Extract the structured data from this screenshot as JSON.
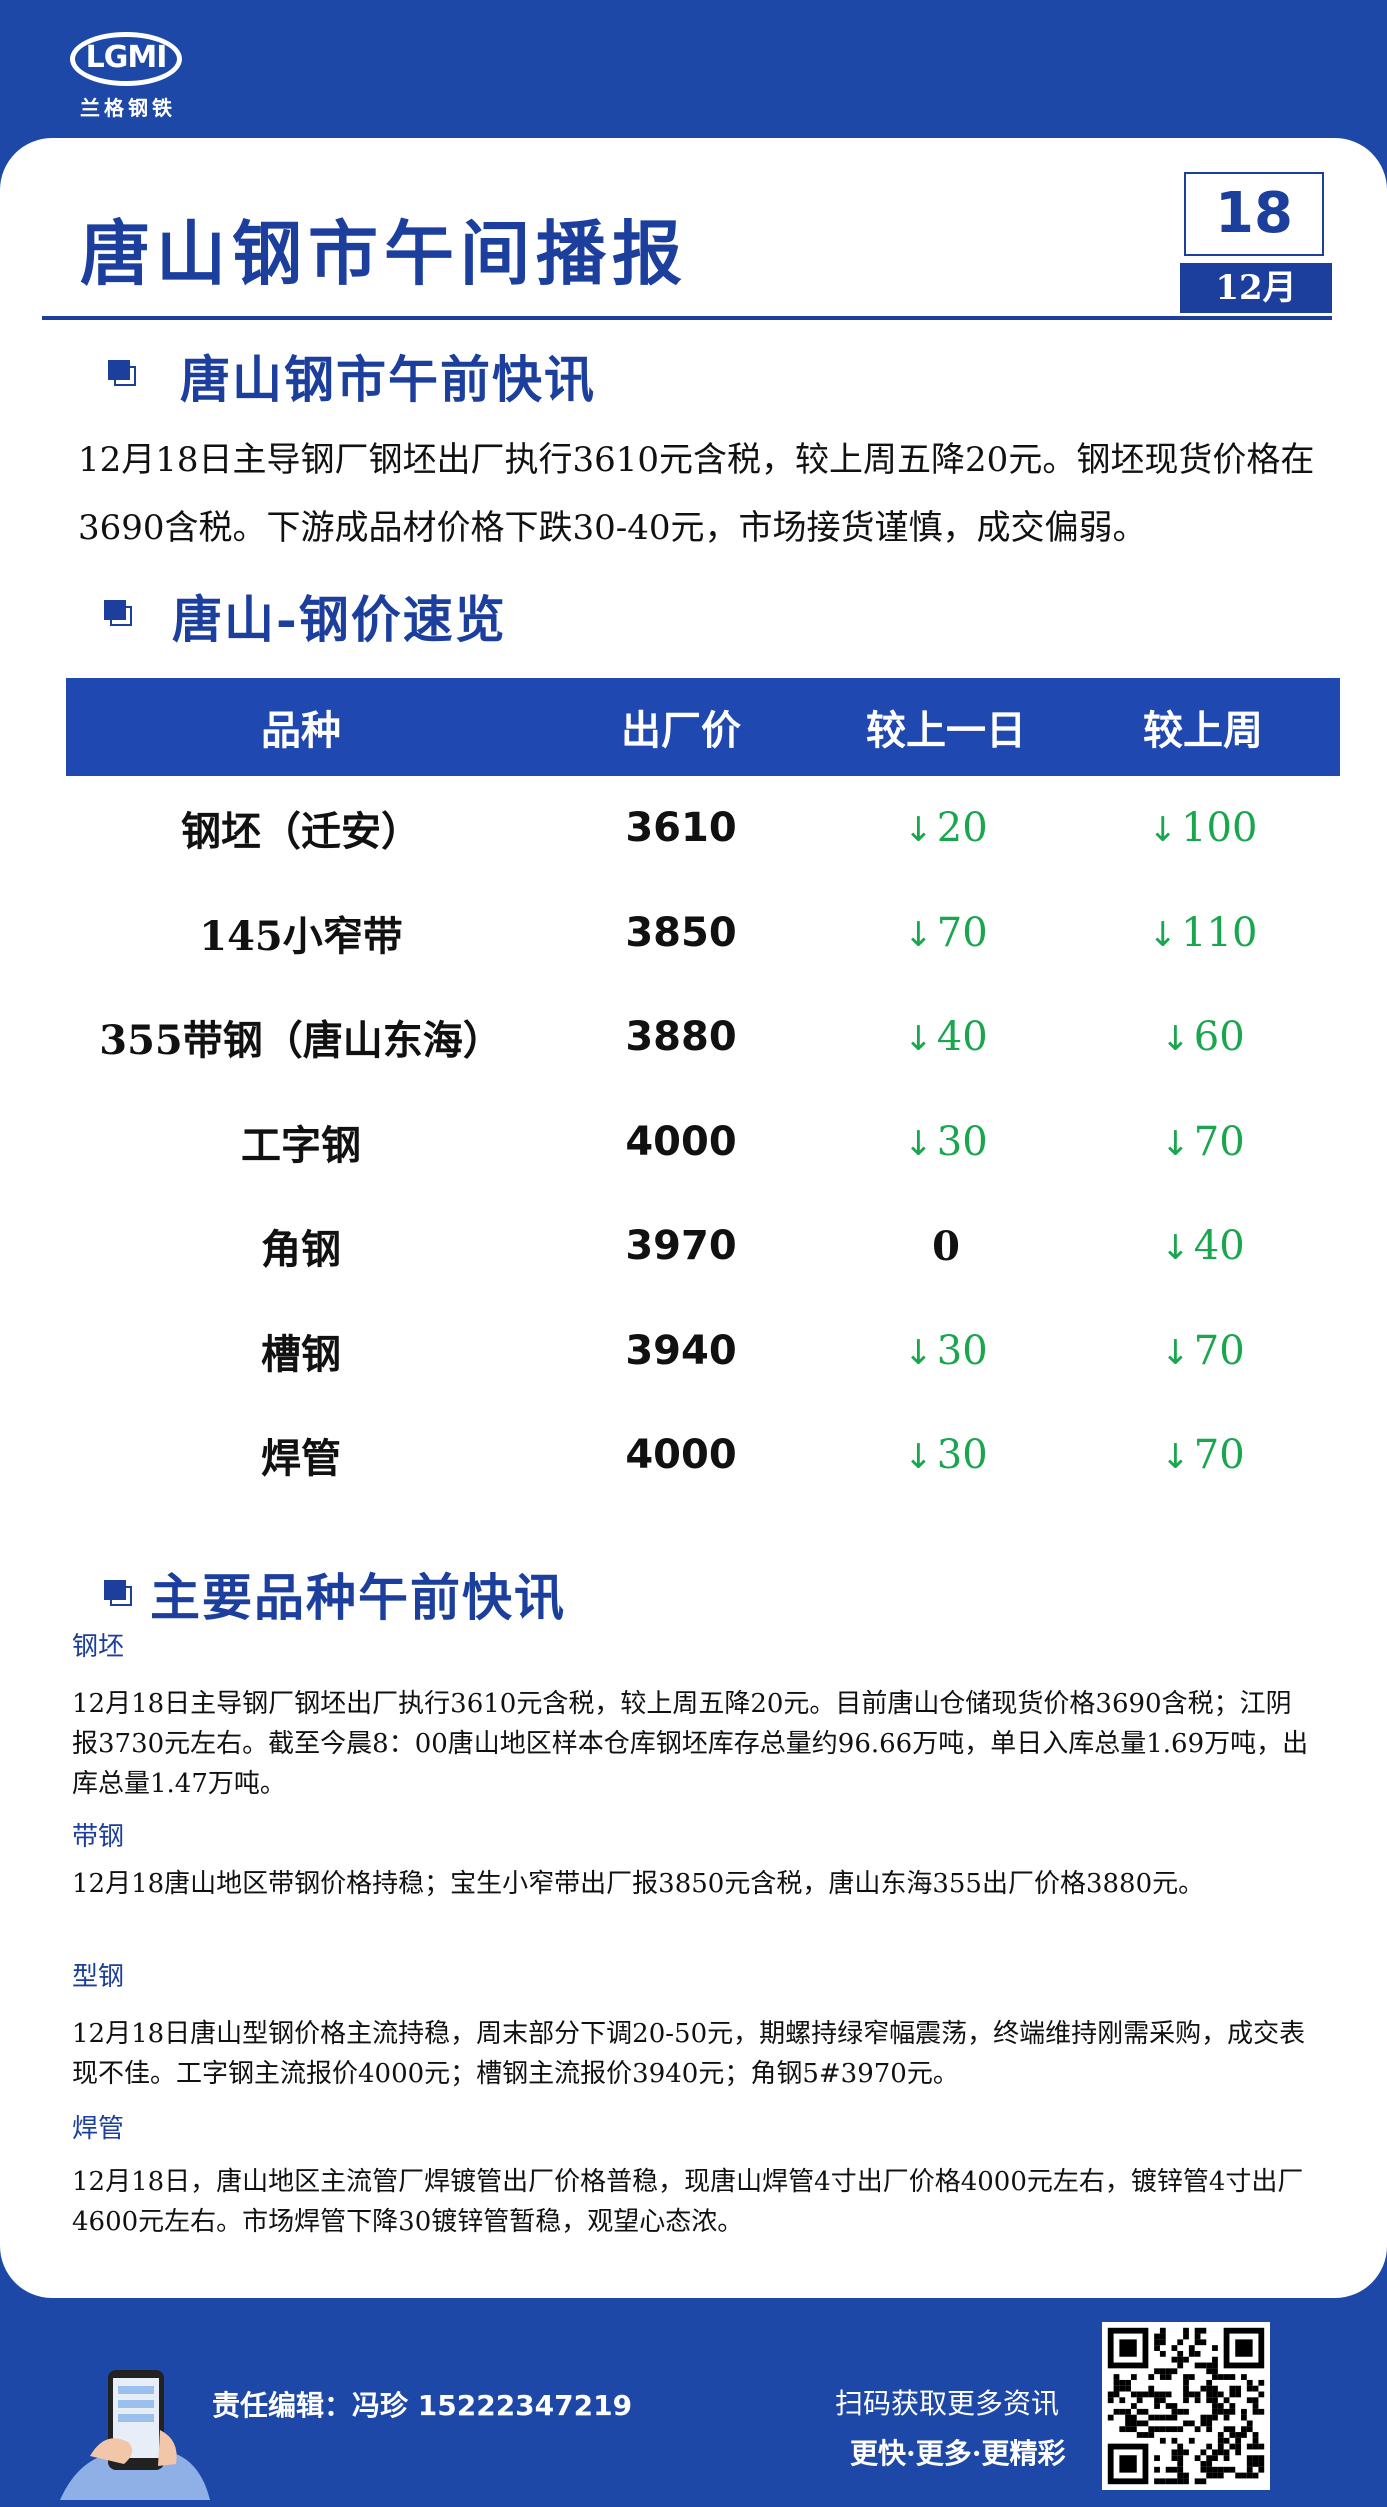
{
  "brand": {
    "logo_text": "LGMI",
    "logo_cn": "兰格钢铁"
  },
  "header": {
    "title": "唐山钢市午间播报",
    "day": "18",
    "month": "12月"
  },
  "section1": {
    "heading": "唐山钢市午前快讯",
    "text": "12月18日主导钢厂钢坯出厂执行3610元含税，较上周五降20元。钢坯现货价格在3690含税。下游成品材价格下跌30-40元，市场接货谨慎，成交偏弱。"
  },
  "section2": {
    "heading": "唐山-钢价速览",
    "columns": [
      "品种",
      "出厂价",
      "较上一日",
      "较上周"
    ],
    "rows": [
      {
        "name": "钢坯（迁安）",
        "price": "3610",
        "day": "20",
        "week": "100"
      },
      {
        "name": "145小窄带",
        "price": "3850",
        "day": "70",
        "week": "110"
      },
      {
        "name": "355带钢（唐山东海）",
        "price": "3880",
        "day": "40",
        "week": "60"
      },
      {
        "name": "工字钢",
        "price": "4000",
        "day": "30",
        "week": "70"
      },
      {
        "name": "角钢",
        "price": "3970",
        "day": "0",
        "week": "40"
      },
      {
        "name": "槽钢",
        "price": "3940",
        "day": "30",
        "week": "70"
      },
      {
        "name": "焊管",
        "price": "4000",
        "day": "30",
        "week": "70"
      }
    ],
    "down_arrow": "↓"
  },
  "section3": {
    "heading": "主要品种午前快讯",
    "items": [
      {
        "label": "钢坯",
        "text": "12月18日主导钢厂钢坯出厂执行3610元含税，较上周五降20元。目前唐山仓储现货价格3690含税；江阴报3730元左右。截至今晨8：00唐山地区样本仓库钢坯库存总量约96.66万吨，单日入库总量1.69万吨，出库总量1.47万吨。"
      },
      {
        "label": "带钢",
        "text": "12月18唐山地区带钢价格持稳；宝生小窄带出厂报3850元含税，唐山东海355出厂价格3880元。"
      },
      {
        "label": "型钢",
        "text": "12月18日唐山型钢价格主流持稳，周末部分下调20-50元，期螺持绿窄幅震荡，终端维持刚需采购，成交表现不佳。工字钢主流报价4000元；槽钢主流报价3940元；角钢5#3970元。"
      },
      {
        "label": "焊管",
        "text": "12月18日，唐山地区主流管厂焊镀管出厂价格普稳，现唐山焊管4寸出厂价格4000元左右，镀锌管4寸出厂4600元左右。市场焊管下降30镀锌管暂稳，观望心态浓。"
      }
    ]
  },
  "footer": {
    "editor_label": "责任编辑：冯珍",
    "phone": "15222347219",
    "scan_text": "扫码获取更多资讯",
    "slogan": "更快·更多·更精彩"
  },
  "colors": {
    "primary": "#1c3f9e",
    "bg": "#1e48a8",
    "down": "#1aa64f"
  }
}
